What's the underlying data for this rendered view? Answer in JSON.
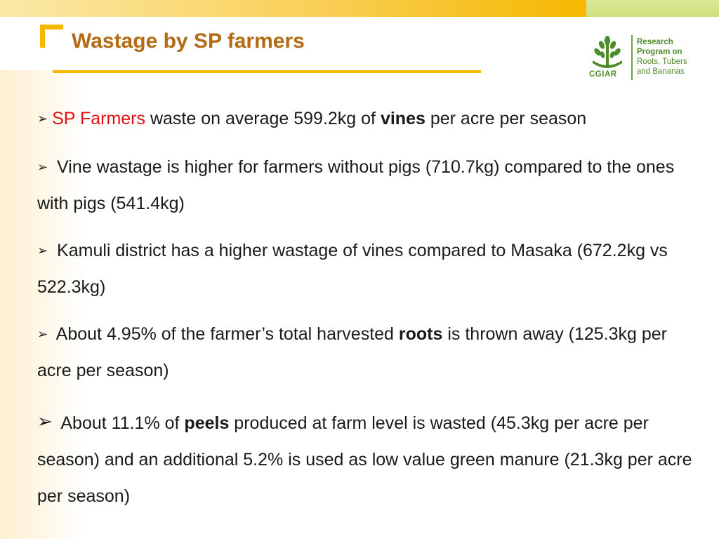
{
  "slide": {
    "title": "Wastage by SP farmers"
  },
  "logo": {
    "org": "CGIAR",
    "line1": "Research",
    "line2": "Program on",
    "line3": "Roots, Tubers",
    "line4": "and Bananas"
  },
  "bullets": [
    {
      "arrow": "➢",
      "highlight": "SP Farmers",
      "text_a": " waste on average 599.2kg of ",
      "bold": "vines",
      "text_b": " per acre per season"
    },
    {
      "arrow": "➢",
      "text": " Vine wastage is higher for farmers without pigs (710.7kg) compared to the ones with pigs (541.4kg)"
    },
    {
      "arrow": "➢",
      "text": " Kamuli district has a higher wastage of vines compared to Masaka (672.2kg  vs 522.3kg)"
    },
    {
      "arrow": "➢",
      "text_a": " About 4.95% of the farmer’s total harvested ",
      "bold": "roots",
      "text_b": " is thrown away (125.3kg per acre per season)"
    },
    {
      "arrow": "➢",
      "text_a": " About 11.1% of ",
      "bold": "peels",
      "text_b": " produced at farm level is wasted (45.3kg per acre per season) and an additional 5.2% is used as low value green manure (21.3kg per acre per season)"
    }
  ],
  "colors": {
    "title": "#b36a12",
    "accent": "#f5b800",
    "highlight": "#e01010",
    "logo_green": "#4e8b2a"
  }
}
